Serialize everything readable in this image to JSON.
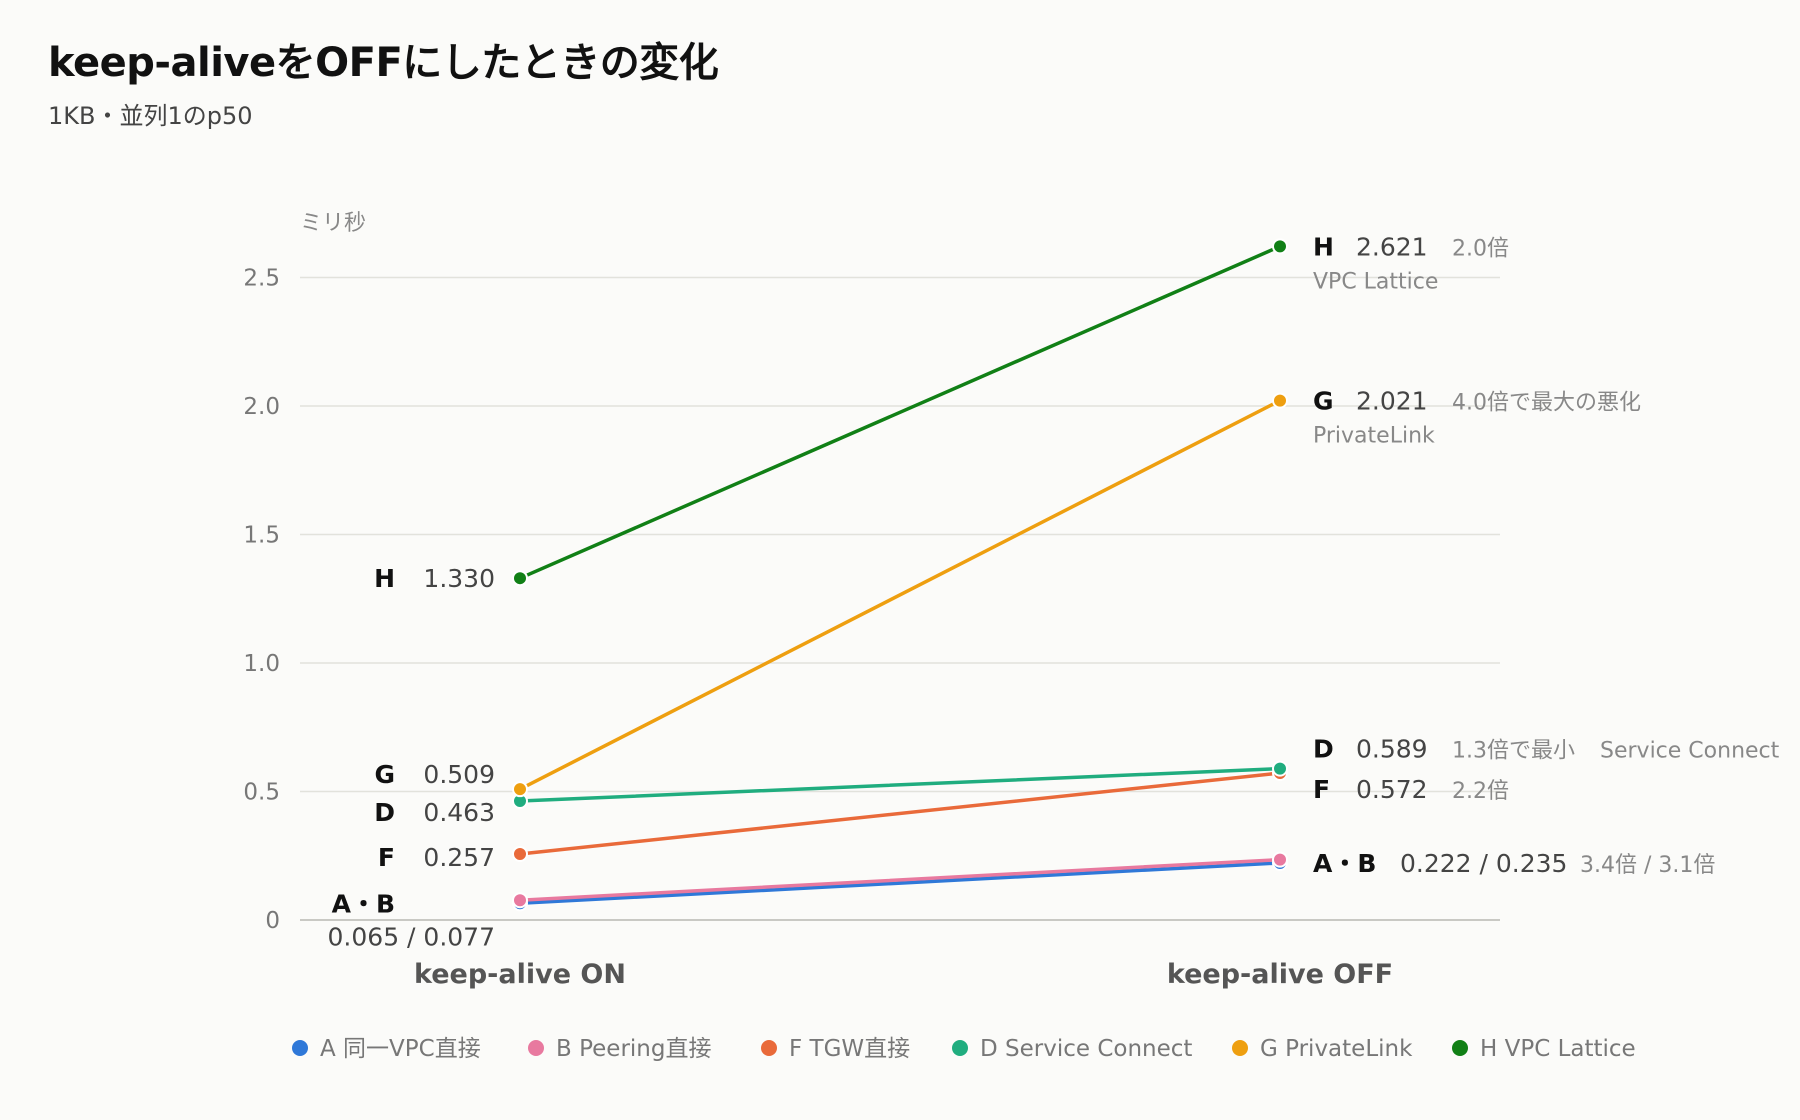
{
  "title": "keep-aliveをOFFにしたときの変化",
  "subtitle": "1KB・並列1のp50",
  "chart_data": {
    "type": "line",
    "chart_style": "slope",
    "title": "keep-aliveをOFFにしたときの変化",
    "subtitle": "1KB・並列1のp50",
    "ylabel": "ミリ秒",
    "x": [
      "keep-alive ON",
      "keep-alive OFF"
    ],
    "ylim": [
      0,
      2.8
    ],
    "yticks": [
      "0",
      "0.5",
      "1.0",
      "1.5",
      "2.0",
      "2.5"
    ],
    "grid": true,
    "legend": "bottom",
    "series": [
      {
        "key": "A",
        "name": "A 同一VPC直接",
        "color": "#2f78d8",
        "values": [
          0.065,
          0.222
        ]
      },
      {
        "key": "B",
        "name": "B Peering直接",
        "color": "#e8799f",
        "values": [
          0.077,
          0.235
        ]
      },
      {
        "key": "F",
        "name": "F TGW直接",
        "color": "#e96a3a",
        "values": [
          0.257,
          0.572
        ]
      },
      {
        "key": "D",
        "name": "D Service Connect",
        "color": "#20ad7f",
        "values": [
          0.463,
          0.589
        ]
      },
      {
        "key": "G",
        "name": "G PrivateLink",
        "color": "#ee9f10",
        "values": [
          0.509,
          2.021
        ]
      },
      {
        "key": "H",
        "name": "H VPC Lattice",
        "color": "#118016",
        "values": [
          1.33,
          2.621
        ]
      }
    ],
    "left_labels": [
      {
        "letter": "H",
        "value": "1.330",
        "y": 1.33
      },
      {
        "letter": "G",
        "value": "0.509",
        "y": 0.509
      },
      {
        "letter": "D",
        "value": "0.463",
        "y": 0.463
      },
      {
        "letter": "F",
        "value": "0.257",
        "y": 0.257
      },
      {
        "letter": "A・B",
        "value": "0.065 / 0.077",
        "y": 0.065
      }
    ],
    "right_labels": [
      {
        "letter": "H",
        "value": "2.621",
        "note": "2.0倍",
        "sub": "VPC Lattice",
        "y": 2.621
      },
      {
        "letter": "G",
        "value": "2.021",
        "note": "4.0倍で最大の悪化",
        "sub": "PrivateLink",
        "y": 2.021
      },
      {
        "letter": "D",
        "value": "0.589",
        "note": "1.3倍で最小",
        "note2": "Service Connect",
        "y": 0.589
      },
      {
        "letter": "F",
        "value": "0.572",
        "note": "2.2倍",
        "y": 0.572
      },
      {
        "letter": "A・B",
        "value": "0.222 / 0.235",
        "note": "3.4倍 / 3.1倍",
        "y": 0.222
      }
    ]
  }
}
